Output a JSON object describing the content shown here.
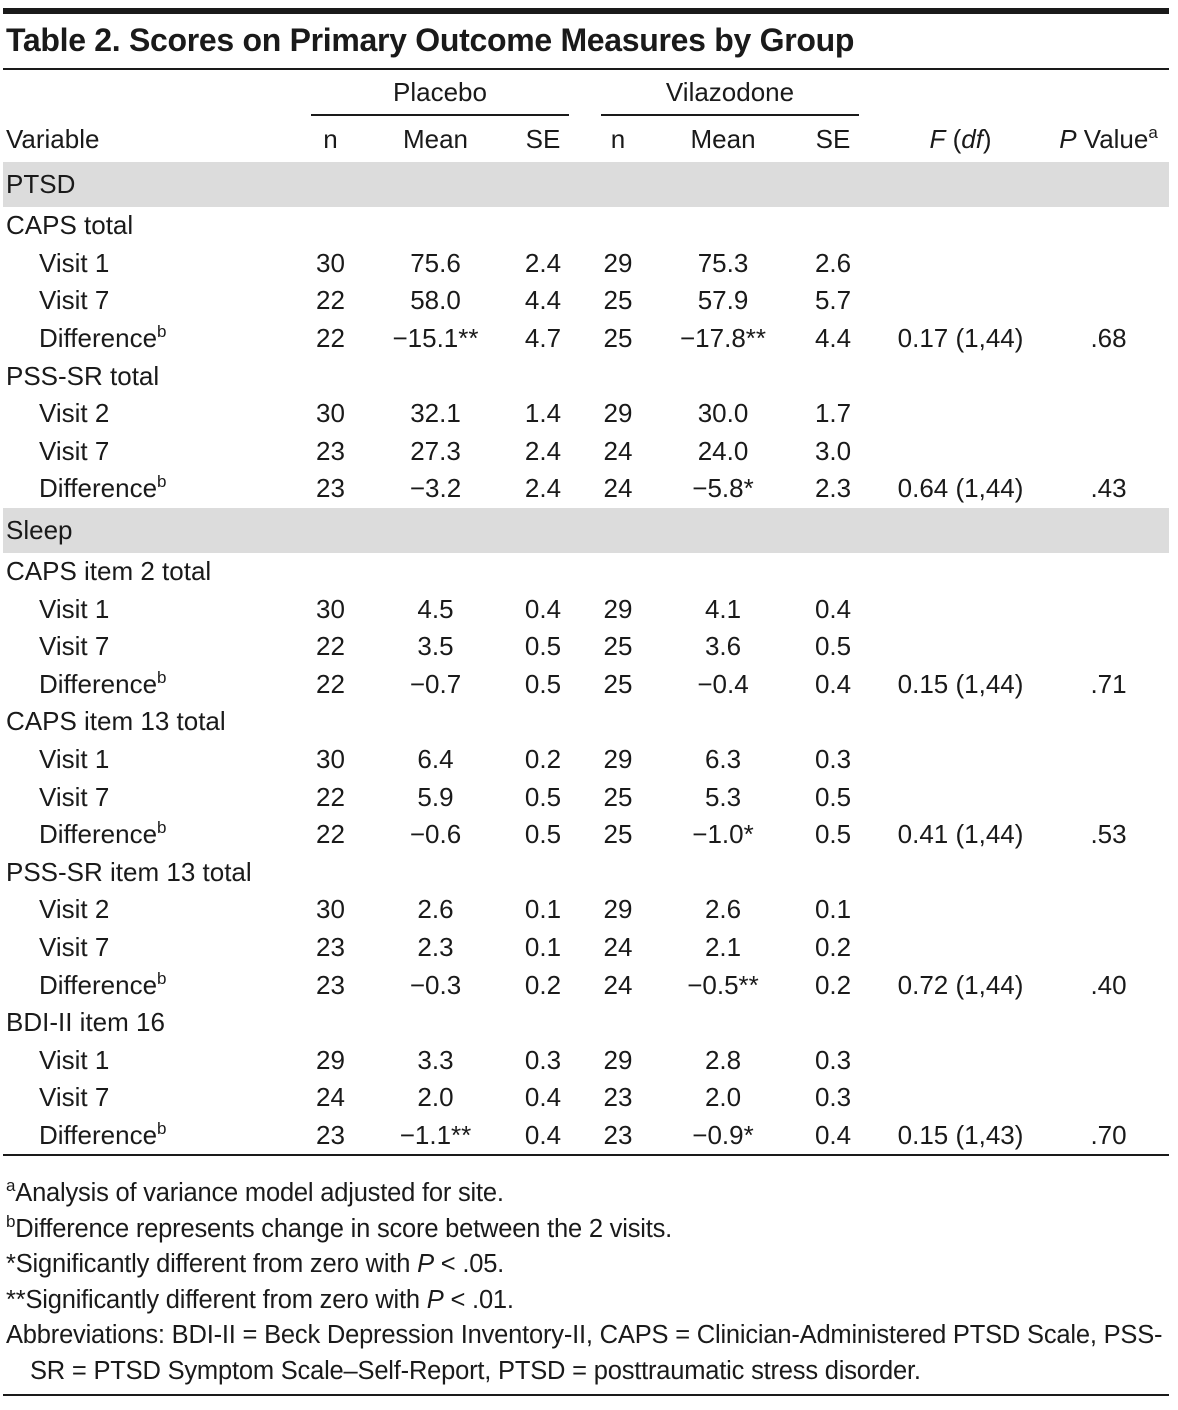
{
  "title": "Table 2. Scores on Primary Outcome Measures by Group",
  "header": {
    "variable": "Variable",
    "groups": [
      {
        "name": "Placebo",
        "columns": [
          "n",
          "Mean",
          "SE"
        ]
      },
      {
        "name": "Vilazodone",
        "columns": [
          "n",
          "Mean",
          "SE"
        ]
      }
    ],
    "f_df": {
      "f": "F",
      "open": " (",
      "df": "df",
      "close": ")"
    },
    "p_value": {
      "p": "P",
      "rest": " Value",
      "note": "a"
    }
  },
  "sections": [
    {
      "name": "PTSD",
      "items": [
        {
          "label": "CAPS total",
          "rows": [
            {
              "label": "Visit 1",
              "placebo": [
                "30",
                "75.6",
                "2.4"
              ],
              "vilazodone": [
                "29",
                "75.3",
                "2.6"
              ]
            },
            {
              "label": "Visit 7",
              "placebo": [
                "22",
                "58.0",
                "4.4"
              ],
              "vilazodone": [
                "25",
                "57.9",
                "5.7"
              ]
            },
            {
              "label": "Difference",
              "note": "b",
              "placebo": [
                "22",
                "−15.1**",
                "4.7"
              ],
              "vilazodone": [
                "25",
                "−17.8**",
                "4.4"
              ],
              "f_df": "0.17 (1,44)",
              "p": ".68"
            }
          ]
        },
        {
          "label": "PSS-SR total",
          "rows": [
            {
              "label": "Visit 2",
              "placebo": [
                "30",
                "32.1",
                "1.4"
              ],
              "vilazodone": [
                "29",
                "30.0",
                "1.7"
              ]
            },
            {
              "label": "Visit 7",
              "placebo": [
                "23",
                "27.3",
                "2.4"
              ],
              "vilazodone": [
                "24",
                "24.0",
                "3.0"
              ]
            },
            {
              "label": "Difference",
              "note": "b",
              "placebo": [
                "23",
                "−3.2",
                "2.4"
              ],
              "vilazodone": [
                "24",
                "−5.8*",
                "2.3"
              ],
              "f_df": "0.64 (1,44)",
              "p": ".43"
            }
          ]
        }
      ]
    },
    {
      "name": "Sleep",
      "items": [
        {
          "label": "CAPS item 2 total",
          "rows": [
            {
              "label": "Visit 1",
              "placebo": [
                "30",
                "4.5",
                "0.4"
              ],
              "vilazodone": [
                "29",
                "4.1",
                "0.4"
              ]
            },
            {
              "label": "Visit 7",
              "placebo": [
                "22",
                "3.5",
                "0.5"
              ],
              "vilazodone": [
                "25",
                "3.6",
                "0.5"
              ]
            },
            {
              "label": "Difference",
              "note": "b",
              "placebo": [
                "22",
                "−0.7",
                "0.5"
              ],
              "vilazodone": [
                "25",
                "−0.4",
                "0.4"
              ],
              "f_df": "0.15 (1,44)",
              "p": ".71"
            }
          ]
        },
        {
          "label": "CAPS item 13 total",
          "rows": [
            {
              "label": "Visit 1",
              "placebo": [
                "30",
                "6.4",
                "0.2"
              ],
              "vilazodone": [
                "29",
                "6.3",
                "0.3"
              ]
            },
            {
              "label": "Visit 7",
              "placebo": [
                "22",
                "5.9",
                "0.5"
              ],
              "vilazodone": [
                "25",
                "5.3",
                "0.5"
              ]
            },
            {
              "label": "Difference",
              "note": "b",
              "placebo": [
                "22",
                "−0.6",
                "0.5"
              ],
              "vilazodone": [
                "25",
                "−1.0*",
                "0.5"
              ],
              "f_df": "0.41 (1,44)",
              "p": ".53"
            }
          ]
        },
        {
          "label": "PSS-SR item 13 total",
          "rows": [
            {
              "label": "Visit 2",
              "placebo": [
                "30",
                "2.6",
                "0.1"
              ],
              "vilazodone": [
                "29",
                "2.6",
                "0.1"
              ]
            },
            {
              "label": "Visit 7",
              "placebo": [
                "23",
                "2.3",
                "0.1"
              ],
              "vilazodone": [
                "24",
                "2.1",
                "0.2"
              ]
            },
            {
              "label": "Difference",
              "note": "b",
              "placebo": [
                "23",
                "−0.3",
                "0.2"
              ],
              "vilazodone": [
                "24",
                "−0.5**",
                "0.2"
              ],
              "f_df": "0.72 (1,44)",
              "p": ".40"
            }
          ]
        },
        {
          "label": "BDI-II item 16",
          "rows": [
            {
              "label": "Visit 1",
              "placebo": [
                "29",
                "3.3",
                "0.3"
              ],
              "vilazodone": [
                "29",
                "2.8",
                "0.3"
              ]
            },
            {
              "label": "Visit 7",
              "placebo": [
                "24",
                "2.0",
                "0.4"
              ],
              "vilazodone": [
                "23",
                "2.0",
                "0.3"
              ]
            },
            {
              "label": "Difference",
              "note": "b",
              "placebo": [
                "23",
                "−1.1**",
                "0.4"
              ],
              "vilazodone": [
                "23",
                "−0.9*",
                "0.4"
              ],
              "f_df": "0.15 (1,43)",
              "p": ".70"
            }
          ]
        }
      ]
    }
  ],
  "footnotes": [
    {
      "marker": "a",
      "text": "Analysis of variance model adjusted for site."
    },
    {
      "marker": "b",
      "text": "Difference represents change in score between the 2 visits."
    },
    {
      "marker": "*",
      "text": "Significantly different from zero with ",
      "italic": "P",
      "after": " < .05."
    },
    {
      "marker": "**",
      "text": "Significantly different from zero with ",
      "italic": "P",
      "after": " < .01."
    }
  ],
  "abbreviations": "Abbreviations: BDI-II = Beck Depression Inventory-II, CAPS = Clinician-Administered PTSD Scale, PSS-SR = PTSD Symptom Scale–Self-Report, PTSD = posttraumatic stress disorder."
}
